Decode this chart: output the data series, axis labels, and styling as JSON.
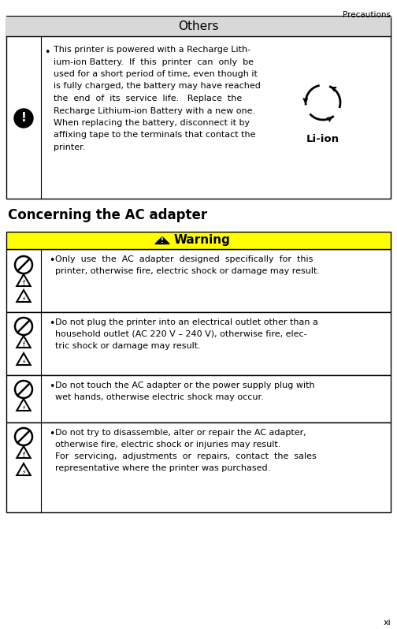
{
  "page_width": 5.04,
  "page_height": 7.98,
  "dpi": 100,
  "bg_color": "#ffffff",
  "header_text": "Precautions",
  "others_header": "Others",
  "others_bg": "#d8d8d8",
  "ac_adapter_header": "Concerning the AC adapter",
  "warning_bg": "#ffff00",
  "warning_text": "Warning",
  "footer_text": "xi",
  "row1_lines": [
    "Only  use  the  AC  adapter  designed  specifically  for  this",
    "printer, otherwise fire, electric shock or damage may result."
  ],
  "row2_lines": [
    "Do not plug the printer into an electrical outlet other than a",
    "household outlet (AC 220 V – 240 V), otherwise fire, elec-",
    "tric shock or damage may result."
  ],
  "row3_lines": [
    "Do not touch the AC adapter or the power supply plug with",
    "wet hands, otherwise electric shock may occur."
  ],
  "row4_lines": [
    "Do not try to disassemble, alter or repair the AC adapter,",
    "otherwise fire, electric shock or injuries may result.",
    "For  servicing,  adjustments  or  repairs,  contact  the  sales",
    "representative where the printer was purchased."
  ],
  "others_lines": [
    "This printer is powered with a Recharge Lith-",
    "ium-ion Battery.  If  this  printer  can  only  be",
    "used for a short period of time, even though it",
    "is fully charged, the battery may have reached",
    "the  end  of  its  service  life.   Replace  the",
    "Recharge Lithium-ion Battery with a new one.",
    "When replacing the battery, disconnect it by",
    "affixing tape to the terminals that contact the",
    "printer."
  ]
}
